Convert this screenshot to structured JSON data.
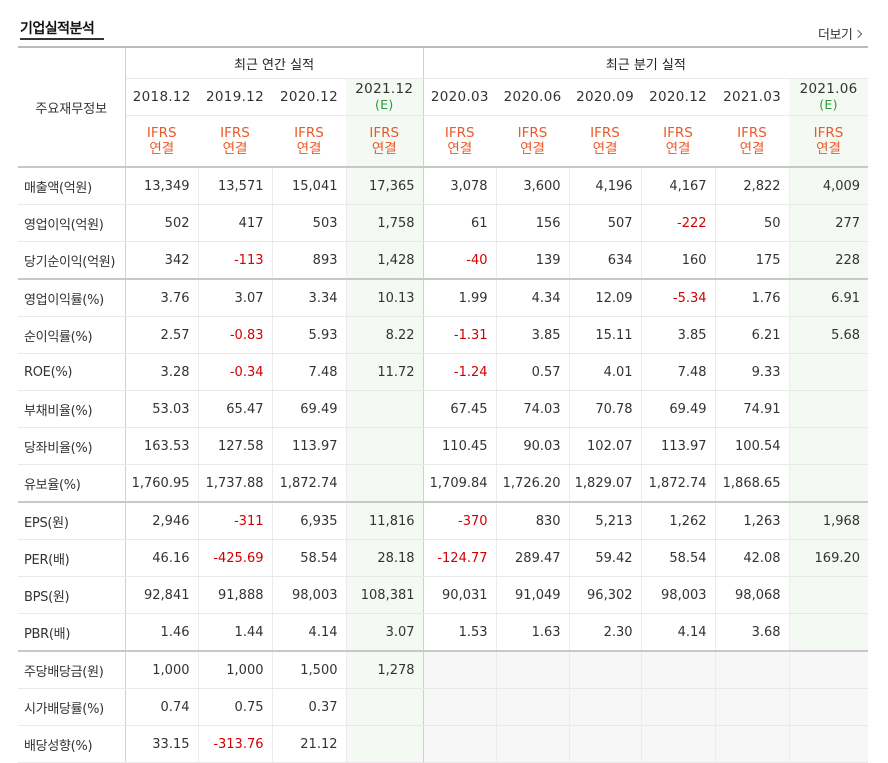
{
  "title": "기업실적분석",
  "more_label": "더보기",
  "label_header": "주요재무정보",
  "groups": {
    "annual": "최근 연간 실적",
    "quarter": "최근 분기 실적"
  },
  "columns": [
    {
      "period": "2018.12",
      "est": "",
      "ifrs1": "IFRS",
      "ifrs2": "연결"
    },
    {
      "period": "2019.12",
      "est": "",
      "ifrs1": "IFRS",
      "ifrs2": "연결"
    },
    {
      "period": "2020.12",
      "est": "",
      "ifrs1": "IFRS",
      "ifrs2": "연결"
    },
    {
      "period": "2021.12",
      "est": "(E)",
      "ifrs1": "IFRS",
      "ifrs2": "연결"
    },
    {
      "period": "2020.03",
      "est": "",
      "ifrs1": "IFRS",
      "ifrs2": "연결"
    },
    {
      "period": "2020.06",
      "est": "",
      "ifrs1": "IFRS",
      "ifrs2": "연결"
    },
    {
      "period": "2020.09",
      "est": "",
      "ifrs1": "IFRS",
      "ifrs2": "연결"
    },
    {
      "period": "2020.12",
      "est": "",
      "ifrs1": "IFRS",
      "ifrs2": "연결"
    },
    {
      "period": "2021.03",
      "est": "",
      "ifrs1": "IFRS",
      "ifrs2": "연결"
    },
    {
      "period": "2021.06",
      "est": "(E)",
      "ifrs1": "IFRS",
      "ifrs2": "연결"
    }
  ],
  "rows": [
    {
      "label": "매출액(억원)",
      "values": [
        "13,349",
        "13,571",
        "15,041",
        "17,365",
        "3,078",
        "3,600",
        "4,196",
        "4,167",
        "2,822",
        "4,009"
      ]
    },
    {
      "label": "영업이익(억원)",
      "values": [
        "502",
        "417",
        "503",
        "1,758",
        "61",
        "156",
        "507",
        "-222",
        "50",
        "277"
      ]
    },
    {
      "label": "당기순이익(억원)",
      "values": [
        "342",
        "-113",
        "893",
        "1,428",
        "-40",
        "139",
        "634",
        "160",
        "175",
        "228"
      ]
    },
    {
      "label": "영업이익률(%)",
      "values": [
        "3.76",
        "3.07",
        "3.34",
        "10.13",
        "1.99",
        "4.34",
        "12.09",
        "-5.34",
        "1.76",
        "6.91"
      ]
    },
    {
      "label": "순이익률(%)",
      "values": [
        "2.57",
        "-0.83",
        "5.93",
        "8.22",
        "-1.31",
        "3.85",
        "15.11",
        "3.85",
        "6.21",
        "5.68"
      ]
    },
    {
      "label": "ROE(%)",
      "values": [
        "3.28",
        "-0.34",
        "7.48",
        "11.72",
        "-1.24",
        "0.57",
        "4.01",
        "7.48",
        "9.33",
        ""
      ]
    },
    {
      "label": "부채비율(%)",
      "values": [
        "53.03",
        "65.47",
        "69.49",
        "",
        "67.45",
        "74.03",
        "70.78",
        "69.49",
        "74.91",
        ""
      ]
    },
    {
      "label": "당좌비율(%)",
      "values": [
        "163.53",
        "127.58",
        "113.97",
        "",
        "110.45",
        "90.03",
        "102.07",
        "113.97",
        "100.54",
        ""
      ]
    },
    {
      "label": "유보율(%)",
      "values": [
        "1,760.95",
        "1,737.88",
        "1,872.74",
        "",
        "1,709.84",
        "1,726.20",
        "1,829.07",
        "1,872.74",
        "1,868.65",
        ""
      ]
    },
    {
      "label": "EPS(원)",
      "values": [
        "2,946",
        "-311",
        "6,935",
        "11,816",
        "-370",
        "830",
        "5,213",
        "1,262",
        "1,263",
        "1,968"
      ]
    },
    {
      "label": "PER(배)",
      "values": [
        "46.16",
        "-425.69",
        "58.54",
        "28.18",
        "-124.77",
        "289.47",
        "59.42",
        "58.54",
        "42.08",
        "169.20"
      ]
    },
    {
      "label": "BPS(원)",
      "values": [
        "92,841",
        "91,888",
        "98,003",
        "108,381",
        "90,031",
        "91,049",
        "96,302",
        "98,003",
        "98,068",
        ""
      ]
    },
    {
      "label": "PBR(배)",
      "values": [
        "1.46",
        "1.44",
        "4.14",
        "3.07",
        "1.53",
        "1.63",
        "2.30",
        "4.14",
        "3.68",
        ""
      ]
    },
    {
      "label": "주당배당금(원)",
      "values": [
        "1,000",
        "1,000",
        "1,500",
        "1,278",
        "",
        "",
        "",
        "",
        "",
        ""
      ]
    },
    {
      "label": "시가배당률(%)",
      "values": [
        "0.74",
        "0.75",
        "0.37",
        "",
        "",
        "",
        "",
        "",
        "",
        ""
      ]
    },
    {
      "label": "배당성향(%)",
      "values": [
        "33.15",
        "-313.76",
        "21.12",
        "",
        "",
        "",
        "",
        "",
        "",
        ""
      ]
    }
  ],
  "colors": {
    "ifrs": "#e85a2a",
    "negative": "#d30000",
    "estimate": "#2a9b3a",
    "estimate_bg": "#f4f9f3"
  }
}
